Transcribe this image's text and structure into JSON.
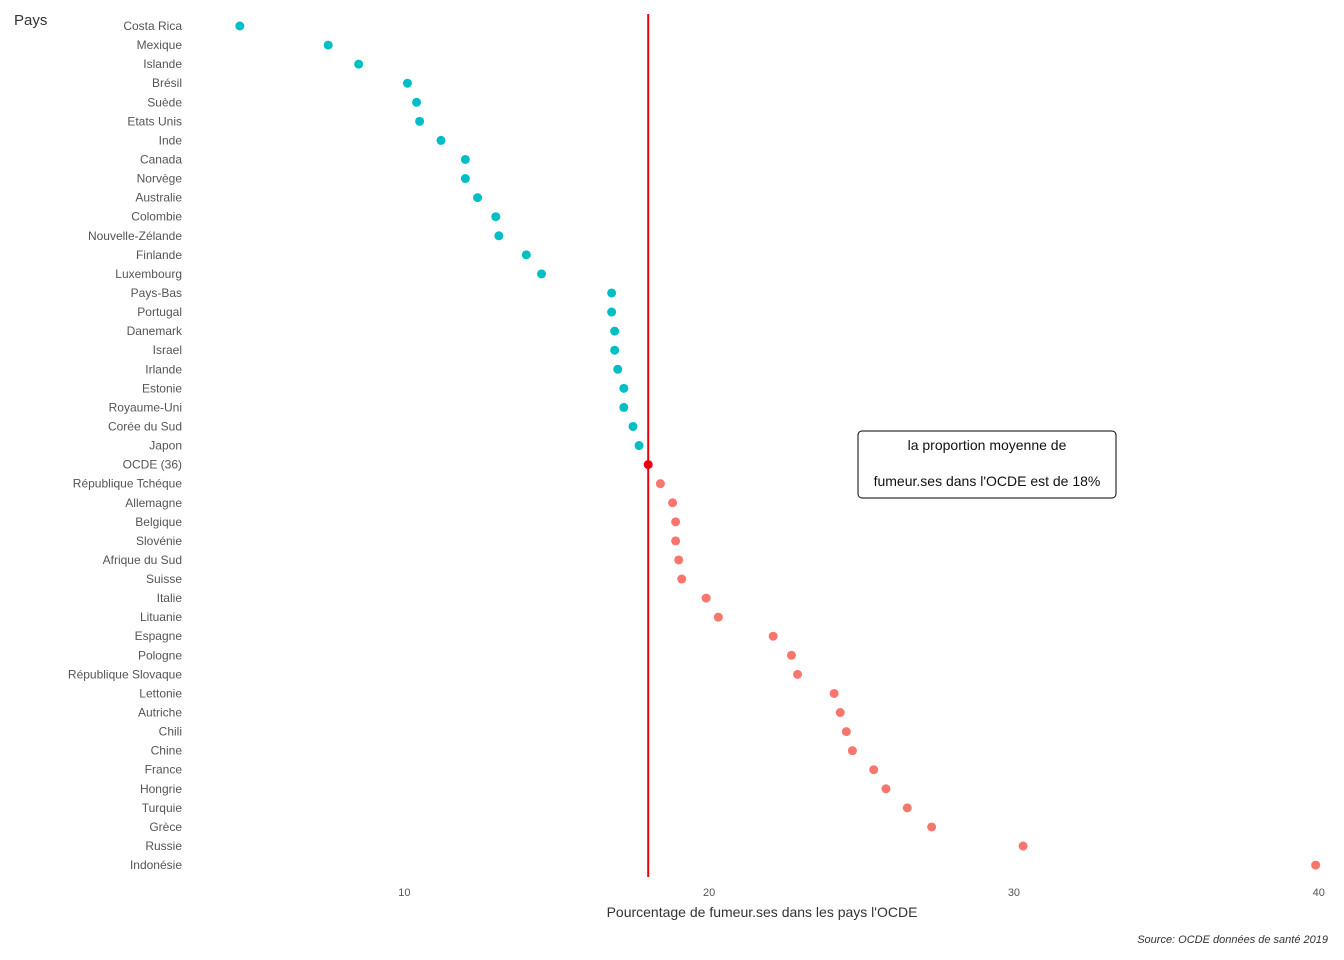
{
  "chart_data": {
    "type": "scatter",
    "ylabel": "Pays",
    "xlabel": "Pourcentage de fumeur.ses dans les pays l'OCDE",
    "caption": "Source: OCDE données de santé 2019",
    "xlim": [
      2.9,
      40.6
    ],
    "xticks": [
      10,
      20,
      30,
      40
    ],
    "grid": false,
    "reference_line": {
      "x": 18,
      "color": "#e8000b"
    },
    "annotation": {
      "lines": [
        "la  proportion moyenne de",
        "fumeur.ses dans l'OCDE est de 18%"
      ],
      "x": 30
    },
    "colors": {
      "below": "#00bfc4",
      "above": "#f8766d",
      "oecd": "#e8000b"
    },
    "points": [
      {
        "country": "Costa Rica",
        "value": 4.6,
        "group": "below"
      },
      {
        "country": "Mexique",
        "value": 7.5,
        "group": "below"
      },
      {
        "country": "Islande",
        "value": 8.5,
        "group": "below"
      },
      {
        "country": "Brésil",
        "value": 10.1,
        "group": "below"
      },
      {
        "country": "Suède",
        "value": 10.4,
        "group": "below"
      },
      {
        "country": "Etats Unis",
        "value": 10.5,
        "group": "below"
      },
      {
        "country": "Inde",
        "value": 11.2,
        "group": "below"
      },
      {
        "country": "Canada",
        "value": 12.0,
        "group": "below"
      },
      {
        "country": "Norvège",
        "value": 12.0,
        "group": "below"
      },
      {
        "country": "Australie",
        "value": 12.4,
        "group": "below"
      },
      {
        "country": "Colombie",
        "value": 13.0,
        "group": "below"
      },
      {
        "country": "Nouvelle-Zélande",
        "value": 13.1,
        "group": "below"
      },
      {
        "country": "Finlande",
        "value": 14.0,
        "group": "below"
      },
      {
        "country": "Luxembourg",
        "value": 14.5,
        "group": "below"
      },
      {
        "country": "Pays-Bas",
        "value": 16.8,
        "group": "below"
      },
      {
        "country": "Portugal",
        "value": 16.8,
        "group": "below"
      },
      {
        "country": "Danemark",
        "value": 16.9,
        "group": "below"
      },
      {
        "country": "Israel",
        "value": 16.9,
        "group": "below"
      },
      {
        "country": "Irlande",
        "value": 17.0,
        "group": "below"
      },
      {
        "country": "Estonie",
        "value": 17.2,
        "group": "below"
      },
      {
        "country": "Royaume-Uni",
        "value": 17.2,
        "group": "below"
      },
      {
        "country": "Corée du Sud",
        "value": 17.5,
        "group": "below"
      },
      {
        "country": "Japon",
        "value": 17.7,
        "group": "below"
      },
      {
        "country": "OCDE (36)",
        "value": 18.0,
        "group": "oecd"
      },
      {
        "country": "République Tchéque",
        "value": 18.4,
        "group": "above"
      },
      {
        "country": "Allemagne",
        "value": 18.8,
        "group": "above"
      },
      {
        "country": "Belgique",
        "value": 18.9,
        "group": "above"
      },
      {
        "country": "Slovénie",
        "value": 18.9,
        "group": "above"
      },
      {
        "country": "Afrique du Sud",
        "value": 19.0,
        "group": "above"
      },
      {
        "country": "Suisse",
        "value": 19.1,
        "group": "above"
      },
      {
        "country": "Italie",
        "value": 19.9,
        "group": "above"
      },
      {
        "country": "Lituanie",
        "value": 20.3,
        "group": "above"
      },
      {
        "country": "Espagne",
        "value": 22.1,
        "group": "above"
      },
      {
        "country": "Pologne",
        "value": 22.7,
        "group": "above"
      },
      {
        "country": "République Slovaque",
        "value": 22.9,
        "group": "above"
      },
      {
        "country": "Lettonie",
        "value": 24.1,
        "group": "above"
      },
      {
        "country": "Autriche",
        "value": 24.3,
        "group": "above"
      },
      {
        "country": "Chili",
        "value": 24.5,
        "group": "above"
      },
      {
        "country": "Chine",
        "value": 24.7,
        "group": "above"
      },
      {
        "country": "France",
        "value": 25.4,
        "group": "above"
      },
      {
        "country": "Hongrie",
        "value": 25.8,
        "group": "above"
      },
      {
        "country": "Turquie",
        "value": 26.5,
        "group": "above"
      },
      {
        "country": "Grèce",
        "value": 27.3,
        "group": "above"
      },
      {
        "country": "Russie",
        "value": 30.3,
        "group": "above"
      },
      {
        "country": "Indonésie",
        "value": 39.9,
        "group": "above"
      }
    ]
  }
}
